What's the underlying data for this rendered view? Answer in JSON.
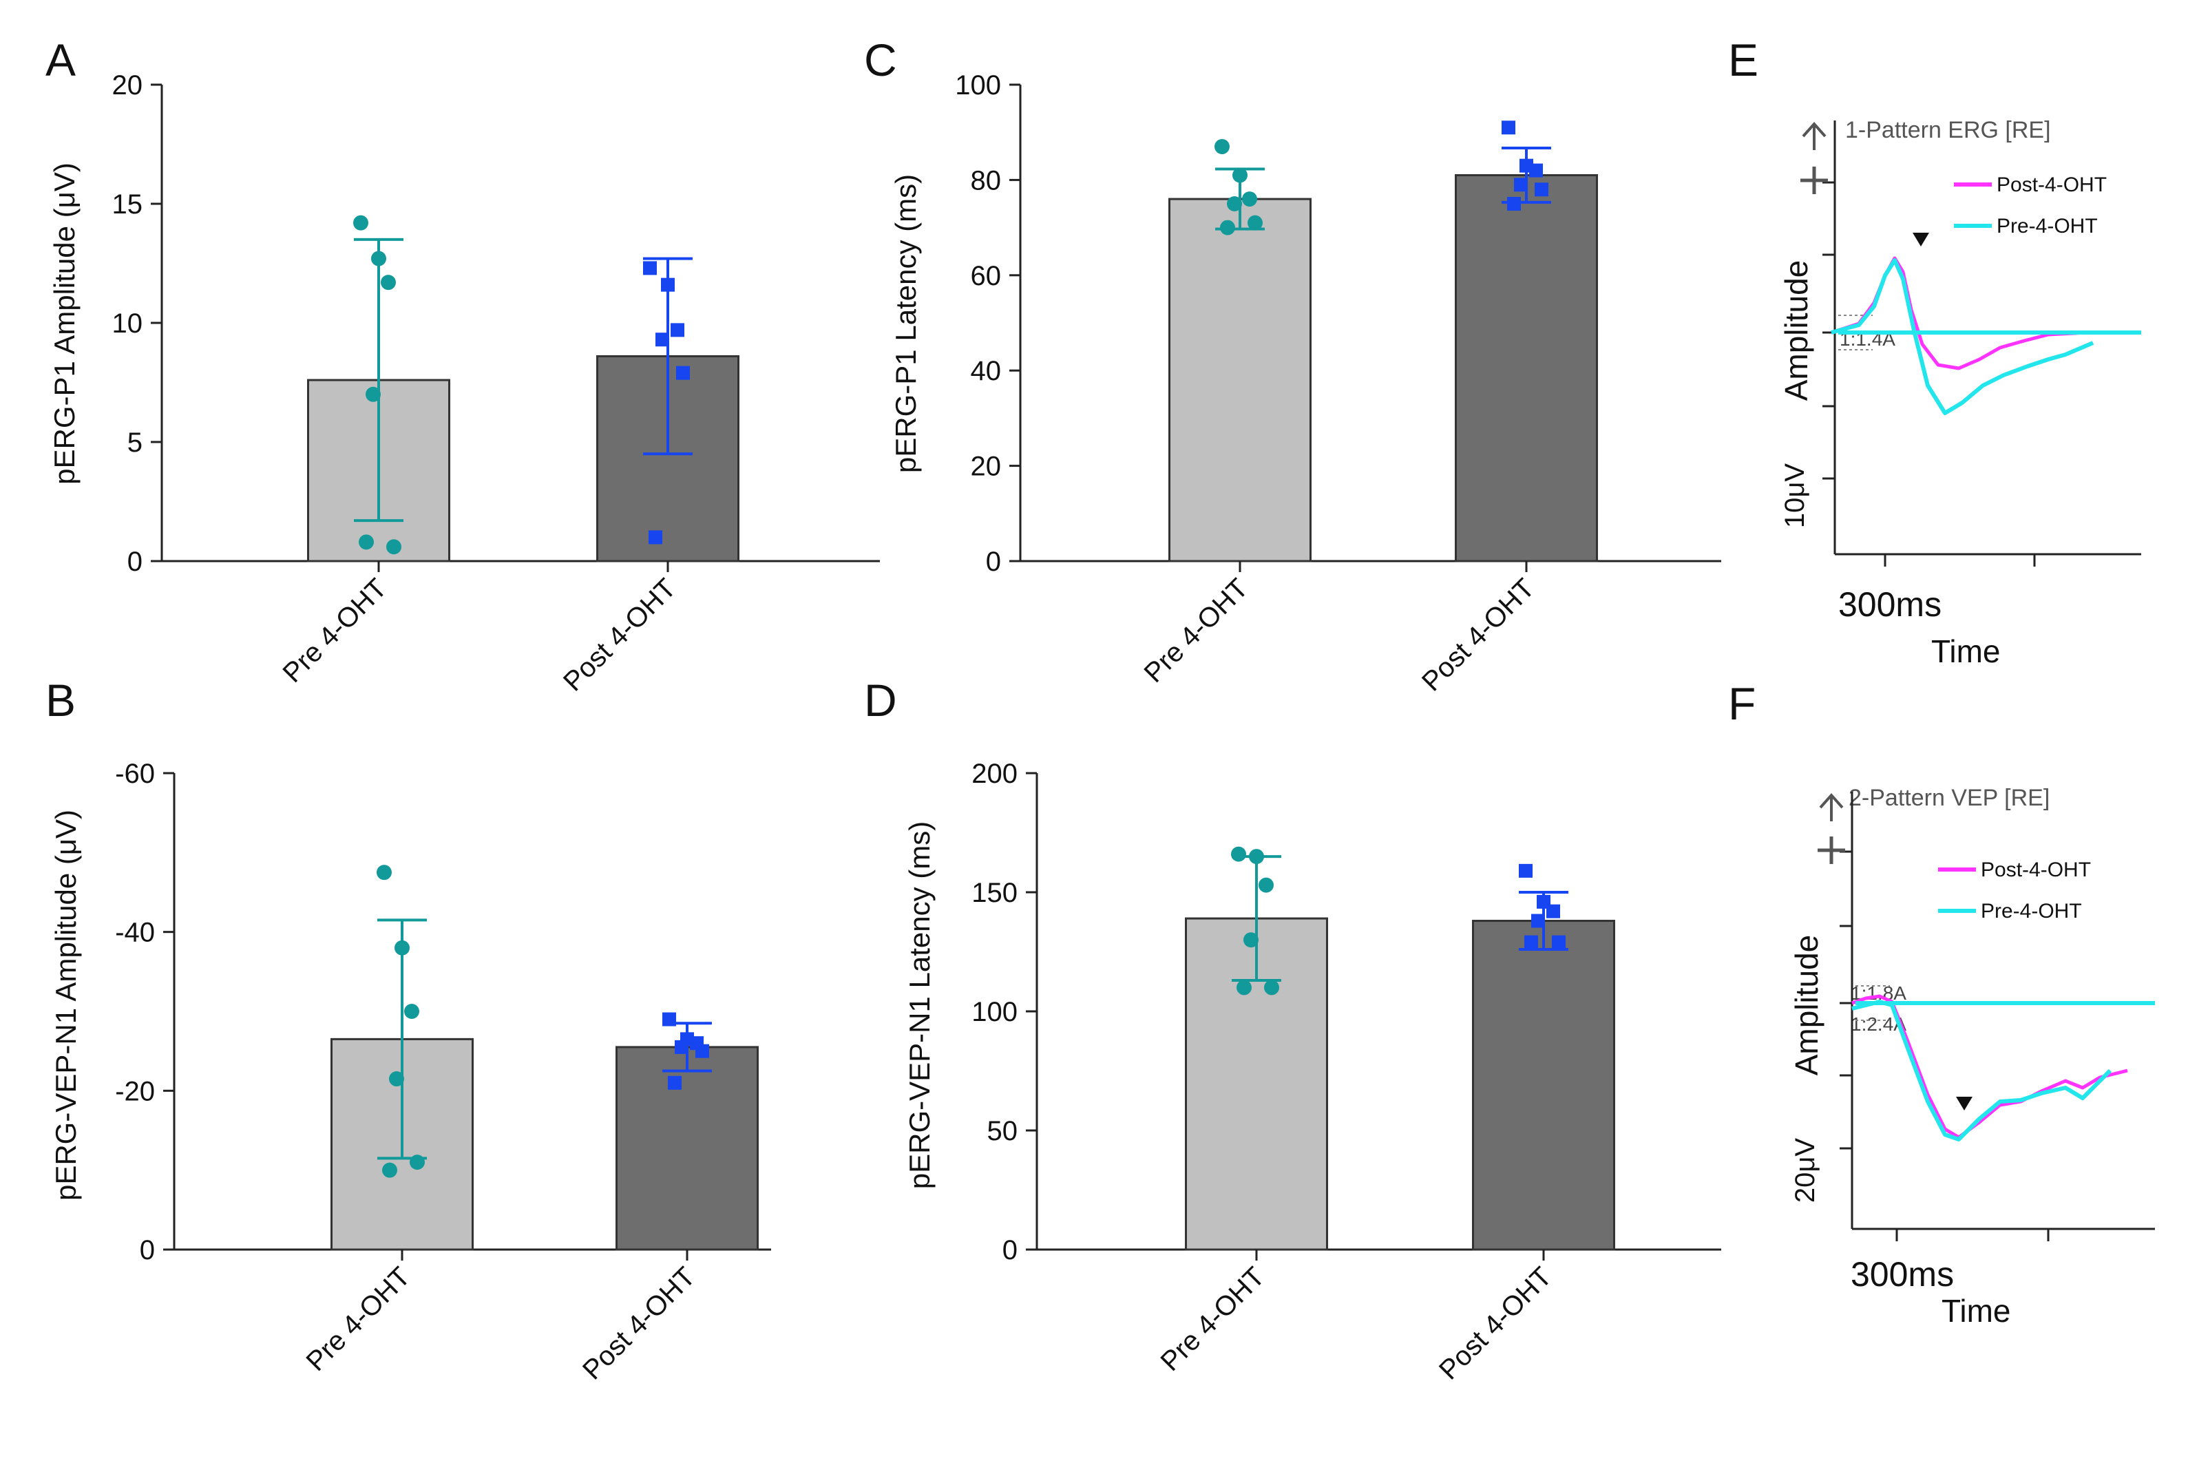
{
  "colors": {
    "pre_bar": "#c0c0c0",
    "post_bar": "#6e6e6e",
    "pre_points": "#129a9a",
    "post_points": "#1746f0",
    "trace_post": "#ff33ff",
    "trace_pre": "#22e6ec",
    "axis": "#222222"
  },
  "chart_data": [
    {
      "panel": "A",
      "type": "bar",
      "title": "",
      "xlabel": "",
      "ylabel": "pERG-P1 Amplitude (μV)",
      "categories": [
        "Pre 4-OHT",
        "Post 4-OHT"
      ],
      "ylim": [
        0,
        20
      ],
      "yticks": [
        0,
        5,
        10,
        15,
        20
      ],
      "ytick_labels": [
        "0",
        "5",
        "10",
        "15",
        "20"
      ],
      "means": [
        7.6,
        8.6
      ],
      "sd": [
        5.9,
        4.1
      ],
      "points": [
        [
          14.2,
          12.7,
          11.7,
          7.0,
          0.6,
          0.8
        ],
        [
          12.3,
          11.6,
          9.7,
          9.3,
          7.9,
          1.0
        ]
      ]
    },
    {
      "panel": "B",
      "type": "bar",
      "title": "",
      "xlabel": "",
      "ylabel": "pERG-VEP-N1 Amplitude (μV)",
      "categories": [
        "Pre 4-OHT",
        "Post 4-OHT"
      ],
      "ylim": [
        0,
        -60
      ],
      "yticks": [
        0,
        -20,
        -40,
        -60
      ],
      "ytick_labels": [
        "0",
        "-20",
        "-40",
        "-60"
      ],
      "means": [
        -26.5,
        -25.5
      ],
      "sd": [
        15.0,
        3.0
      ],
      "points": [
        [
          -47.5,
          -38.0,
          -30.0,
          -21.5,
          -11.0,
          -10.0
        ],
        [
          -29.0,
          -26.5,
          -26.0,
          -25.5,
          -25.0,
          -21.0
        ]
      ]
    },
    {
      "panel": "C",
      "type": "bar",
      "title": "",
      "xlabel": "",
      "ylabel": "pERG-P1 Latency (ms)",
      "categories": [
        "Pre 4-OHT",
        "Post 4-OHT"
      ],
      "ylim": [
        0,
        100
      ],
      "yticks": [
        0,
        20,
        40,
        60,
        80,
        100
      ],
      "ytick_labels": [
        "0",
        "20",
        "40",
        "60",
        "80",
        "100"
      ],
      "means": [
        76,
        81
      ],
      "sd": [
        6.3,
        5.7
      ],
      "points": [
        [
          87,
          81,
          76,
          75,
          71,
          70
        ],
        [
          91,
          83,
          82,
          79,
          78,
          75
        ]
      ]
    },
    {
      "panel": "D",
      "type": "bar",
      "title": "",
      "xlabel": "",
      "ylabel": "pERG-VEP-N1  Latency (ms)",
      "categories": [
        "Pre 4-OHT",
        "Post 4-OHT"
      ],
      "ylim": [
        0,
        200
      ],
      "yticks": [
        0,
        50,
        100,
        150,
        200
      ],
      "ytick_labels": [
        "0",
        "50",
        "100",
        "150",
        "200"
      ],
      "means": [
        139,
        138
      ],
      "sd": [
        26,
        12
      ],
      "points": [
        [
          166,
          165,
          153,
          130,
          110,
          110
        ],
        [
          159,
          146,
          142,
          138,
          129,
          129
        ]
      ]
    }
  ],
  "traces": [
    {
      "panel": "E",
      "title": "1-Pattern ERG [RE]",
      "ylabel": "Amplitude",
      "xlabel": "Time",
      "x_scale": "300ms",
      "y_scale": "10μV",
      "marker_label": "1:1.4A",
      "legend": [
        {
          "name": "Post-4-OHT",
          "color": "#ff33ff"
        },
        {
          "name": "Pre-4-OHT",
          "color": "#22e6ec"
        }
      ]
    },
    {
      "panel": "F",
      "title": "2-Pattern VEP [RE]",
      "ylabel": "Amplitude",
      "xlabel": "Time",
      "x_scale": "300ms",
      "y_scale": "20μV",
      "marker_label": "1:1.8A",
      "marker_label_2": "1:2.4A",
      "legend": [
        {
          "name": "Post-4-OHT",
          "color": "#ff33ff"
        },
        {
          "name": "Pre-4-OHT",
          "color": "#22e6ec"
        }
      ]
    }
  ]
}
